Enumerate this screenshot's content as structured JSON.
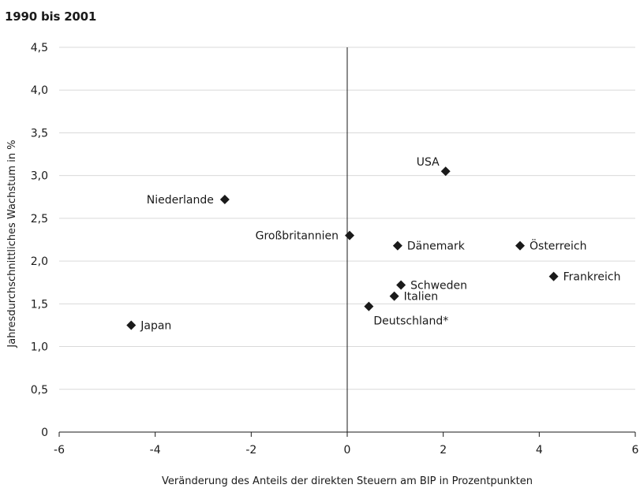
{
  "chart_data": {
    "type": "scatter",
    "title": "1990 bis 2001",
    "xlabel": "Veränderung des Anteils der direkten Steuern am BIP in Prozentpunkten",
    "ylabel": "Jahresdurchschnittliches Wachstum in %",
    "xlim": [
      -6,
      6
    ],
    "ylim": [
      0,
      4.5
    ],
    "grid": "horizontal",
    "legend": "none",
    "x_ticks": [
      -6,
      -4,
      -2,
      0,
      2,
      4,
      6
    ],
    "x_tick_labels": [
      "-6",
      "-4",
      "-2",
      "0",
      "2",
      "4",
      "6"
    ],
    "y_ticks": [
      0,
      0.5,
      1.0,
      1.5,
      2.0,
      2.5,
      3.0,
      3.5,
      4.0,
      4.5
    ],
    "y_tick_labels": [
      "0",
      "0,5",
      "1,0",
      "1,5",
      "2,0",
      "2,5",
      "3,0",
      "3,5",
      "4,0",
      "4,5"
    ],
    "points": [
      {
        "label": "USA",
        "x": 2.05,
        "y": 3.05,
        "label_pos": "top-left"
      },
      {
        "label": "Niederlande",
        "x": -2.55,
        "y": 2.72,
        "label_pos": "left"
      },
      {
        "label": "Großbritannien",
        "x": 0.05,
        "y": 2.3,
        "label_pos": "left"
      },
      {
        "label": "Dänemark",
        "x": 1.05,
        "y": 2.18,
        "label_pos": "right"
      },
      {
        "label": "Österreich",
        "x": 3.6,
        "y": 2.18,
        "label_pos": "right"
      },
      {
        "label": "Frankreich",
        "x": 4.3,
        "y": 1.82,
        "label_pos": "right"
      },
      {
        "label": "Schweden",
        "x": 1.12,
        "y": 1.72,
        "label_pos": "right"
      },
      {
        "label": "Italien",
        "x": 0.98,
        "y": 1.59,
        "label_pos": "right"
      },
      {
        "label": "Deutschland*",
        "x": 0.45,
        "y": 1.47,
        "label_pos": "bottom-right"
      },
      {
        "label": "Japan",
        "x": -4.5,
        "y": 1.25,
        "label_pos": "right"
      }
    ]
  }
}
